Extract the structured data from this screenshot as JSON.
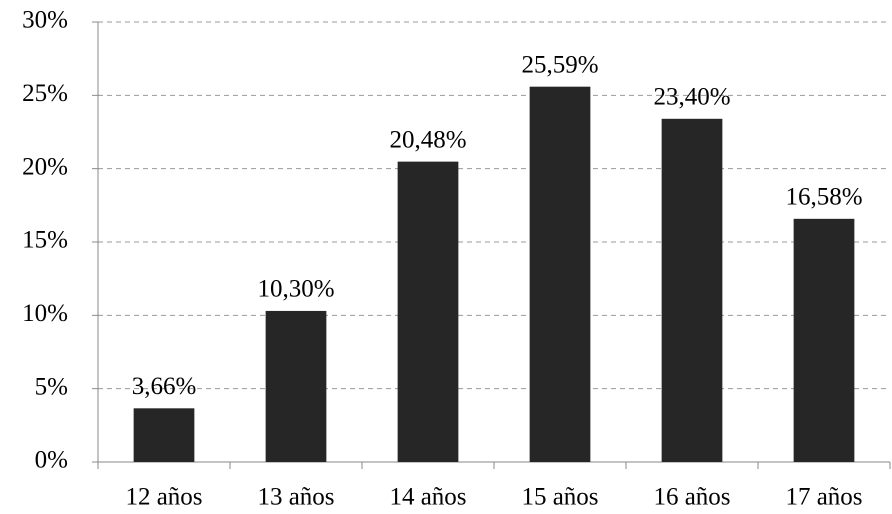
{
  "chart_data": {
    "type": "bar",
    "categories": [
      "12 años",
      "13 años",
      "14 años",
      "15 años",
      "16 años",
      "17 años"
    ],
    "values": [
      3.66,
      10.3,
      20.48,
      25.59,
      23.4,
      16.58
    ],
    "value_labels": [
      "3,66%",
      "10,30%",
      "20,48%",
      "25,59%",
      "23,40%",
      "16,58%"
    ],
    "color": "#262626",
    "ylim": [
      0,
      30
    ],
    "yticks": [
      {
        "value": 0,
        "label": "0%"
      },
      {
        "value": 5,
        "label": "5%"
      },
      {
        "value": 10,
        "label": "10%"
      },
      {
        "value": 15,
        "label": "15%"
      },
      {
        "value": 20,
        "label": "20%"
      },
      {
        "value": 25,
        "label": "25%"
      },
      {
        "value": 30,
        "label": "30%"
      }
    ],
    "grid": true
  }
}
